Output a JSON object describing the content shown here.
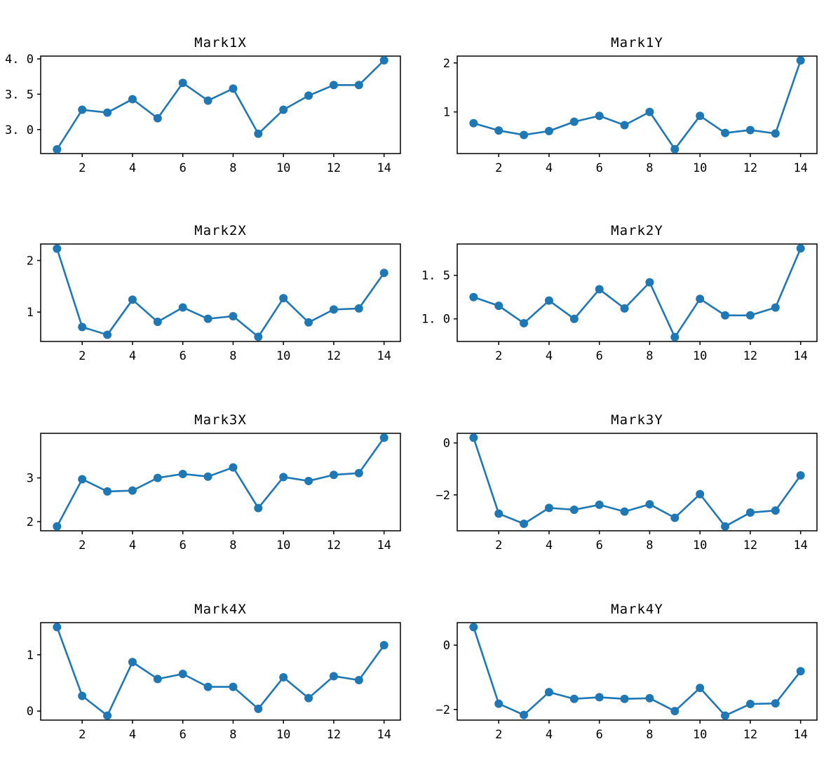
{
  "figure": {
    "background": "#ffffff",
    "line_color": "#1f77b4",
    "marker_color": "#1f77b4",
    "axis_color": "#000000",
    "xlim": [
      0.35,
      14.65
    ],
    "xtick_values": [
      2,
      4,
      6,
      8,
      10,
      12,
      14
    ],
    "xtick_labels": [
      "2",
      "4",
      "6",
      "8",
      "10",
      "12",
      "14"
    ]
  },
  "chart_data": [
    {
      "type": "line",
      "title": "Mark1X",
      "x": [
        1,
        2,
        3,
        4,
        5,
        6,
        7,
        8,
        9,
        10,
        11,
        12,
        13,
        14
      ],
      "values": [
        2.72,
        3.28,
        3.24,
        3.43,
        3.16,
        3.66,
        3.41,
        3.58,
        2.94,
        3.28,
        3.48,
        3.63,
        3.63,
        3.98
      ],
      "ylim": [
        2.66,
        4.04
      ],
      "ytick_values": [
        3.0,
        3.5,
        4.0
      ],
      "ytick_labels": [
        "3. 0",
        "3. 5",
        "4. 0"
      ]
    },
    {
      "type": "line",
      "title": "Mark1Y",
      "x": [
        1,
        2,
        3,
        4,
        5,
        6,
        7,
        8,
        9,
        10,
        11,
        12,
        13,
        14
      ],
      "values": [
        0.77,
        0.62,
        0.53,
        0.61,
        0.8,
        0.92,
        0.73,
        1.0,
        0.24,
        0.92,
        0.57,
        0.63,
        0.56,
        2.05
      ],
      "ylim": [
        0.15,
        2.14
      ],
      "ytick_values": [
        1,
        2
      ],
      "ytick_labels": [
        "1",
        "2"
      ]
    },
    {
      "type": "line",
      "title": "Mark2X",
      "x": [
        1,
        2,
        3,
        4,
        5,
        6,
        7,
        8,
        9,
        10,
        11,
        12,
        13,
        14
      ],
      "values": [
        2.23,
        0.71,
        0.56,
        1.24,
        0.81,
        1.09,
        0.87,
        0.92,
        0.52,
        1.27,
        0.8,
        1.05,
        1.07,
        1.76
      ],
      "ylim": [
        0.43,
        2.32
      ],
      "ytick_values": [
        1,
        2
      ],
      "ytick_labels": [
        "1",
        "2"
      ]
    },
    {
      "type": "line",
      "title": "Mark2Y",
      "x": [
        1,
        2,
        3,
        4,
        5,
        6,
        7,
        8,
        9,
        10,
        11,
        12,
        13,
        14
      ],
      "values": [
        1.25,
        1.15,
        0.95,
        1.21,
        1.0,
        1.34,
        1.12,
        1.42,
        0.79,
        1.23,
        1.04,
        1.04,
        1.13,
        1.81
      ],
      "ylim": [
        0.74,
        1.86
      ],
      "ytick_values": [
        1.0,
        1.5
      ],
      "ytick_labels": [
        "1. 0",
        "1. 5"
      ]
    },
    {
      "type": "line",
      "title": "Mark3X",
      "x": [
        1,
        2,
        3,
        4,
        5,
        6,
        7,
        8,
        9,
        10,
        11,
        12,
        13,
        14
      ],
      "values": [
        1.89,
        2.97,
        2.69,
        2.71,
        3.0,
        3.09,
        3.03,
        3.24,
        2.31,
        3.02,
        2.93,
        3.07,
        3.11,
        3.92
      ],
      "ylim": [
        1.79,
        4.02
      ],
      "ytick_values": [
        2,
        3
      ],
      "ytick_labels": [
        "2",
        "3"
      ]
    },
    {
      "type": "line",
      "title": "Mark3Y",
      "x": [
        1,
        2,
        3,
        4,
        5,
        6,
        7,
        8,
        9,
        10,
        11,
        12,
        13,
        14
      ],
      "values": [
        0.2,
        -2.72,
        -3.11,
        -2.5,
        -2.57,
        -2.38,
        -2.64,
        -2.36,
        -2.88,
        -1.97,
        -3.21,
        -2.68,
        -2.6,
        -1.25
      ],
      "ylim": [
        -3.38,
        0.37
      ],
      "ytick_values": [
        -2,
        0
      ],
      "ytick_labels": [
        "−2",
        "0"
      ]
    },
    {
      "type": "line",
      "title": "Mark4X",
      "x": [
        1,
        2,
        3,
        4,
        5,
        6,
        7,
        8,
        9,
        10,
        11,
        12,
        13,
        14
      ],
      "values": [
        1.49,
        0.27,
        -0.08,
        0.87,
        0.57,
        0.66,
        0.43,
        0.43,
        0.04,
        0.6,
        0.23,
        0.62,
        0.55,
        1.17
      ],
      "ylim": [
        -0.16,
        1.57
      ],
      "ytick_values": [
        0,
        1
      ],
      "ytick_labels": [
        "0",
        "1"
      ]
    },
    {
      "type": "line",
      "title": "Mark4Y",
      "x": [
        1,
        2,
        3,
        4,
        5,
        6,
        7,
        8,
        9,
        10,
        11,
        12,
        13,
        14
      ],
      "values": [
        0.56,
        -1.82,
        -2.17,
        -1.46,
        -1.67,
        -1.62,
        -1.67,
        -1.65,
        -2.05,
        -1.33,
        -2.19,
        -1.83,
        -1.81,
        -0.81
      ],
      "ylim": [
        -2.33,
        0.7
      ],
      "ytick_values": [
        -2,
        0
      ],
      "ytick_labels": [
        "−2",
        "0"
      ]
    }
  ]
}
